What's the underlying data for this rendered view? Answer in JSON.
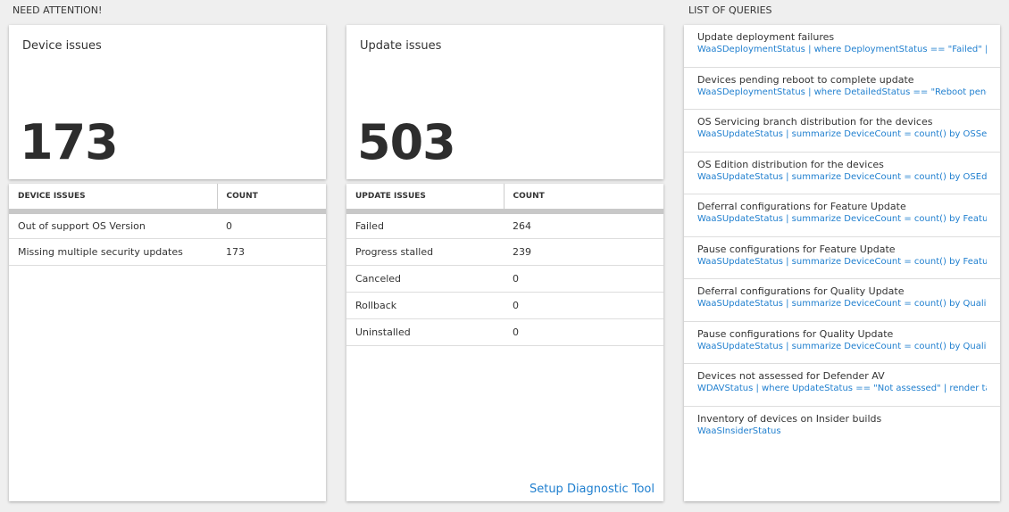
{
  "need_attention": {
    "title": "NEED ATTENTION!",
    "device_tile": {
      "title": "Device issues",
      "value": "173"
    },
    "update_tile": {
      "title": "Update issues",
      "value": "503"
    },
    "device_table": {
      "headers": [
        "DEVICE ISSUES",
        "COUNT"
      ],
      "rows": [
        [
          "Out of support OS Version",
          "0"
        ],
        [
          "Missing multiple security updates",
          "173"
        ]
      ]
    },
    "update_table": {
      "headers": [
        "UPDATE ISSUES",
        "COUNT"
      ],
      "rows": [
        [
          "Failed",
          "264"
        ],
        [
          "Progress stalled",
          "239"
        ],
        [
          "Canceled",
          "0"
        ],
        [
          "Rollback",
          "0"
        ],
        [
          "Uninstalled",
          "0"
        ]
      ]
    },
    "setup_link": "Setup Diagnostic Tool"
  },
  "queries": {
    "title": "LIST OF QUERIES",
    "items": [
      {
        "title": "Update deployment failures",
        "query": "WaaSDeploymentStatus | where DeploymentStatus == \"Failed\" |..."
      },
      {
        "title": "Devices pending reboot to complete update",
        "query": "WaaSDeploymentStatus | where DetailedStatus == \"Reboot pend..."
      },
      {
        "title": "OS Servicing branch distribution for the devices",
        "query": "WaaSUpdateStatus | summarize DeviceCount = count() by OSSer..."
      },
      {
        "title": "OS Edition distribution for the devices",
        "query": "WaaSUpdateStatus | summarize DeviceCount = count() by OSEdit..."
      },
      {
        "title": "Deferral configurations for Feature Update",
        "query": "WaaSUpdateStatus | summarize DeviceCount = count() by Featur..."
      },
      {
        "title": "Pause configurations for Feature Update",
        "query": "WaaSUpdateStatus | summarize DeviceCount = count() by Featur..."
      },
      {
        "title": "Deferral configurations for Quality Update",
        "query": "WaaSUpdateStatus | summarize DeviceCount = count() by Qualit..."
      },
      {
        "title": "Pause configurations for Quality Update",
        "query": "WaaSUpdateStatus | summarize DeviceCount = count() by Qualit..."
      },
      {
        "title": "Devices not assessed for Defender AV",
        "query": "WDAVStatus | where UpdateStatus == \"Not assessed\" | render ta..."
      },
      {
        "title": "Inventory of devices on Insider builds",
        "query": "WaaSInsiderStatus"
      }
    ]
  }
}
